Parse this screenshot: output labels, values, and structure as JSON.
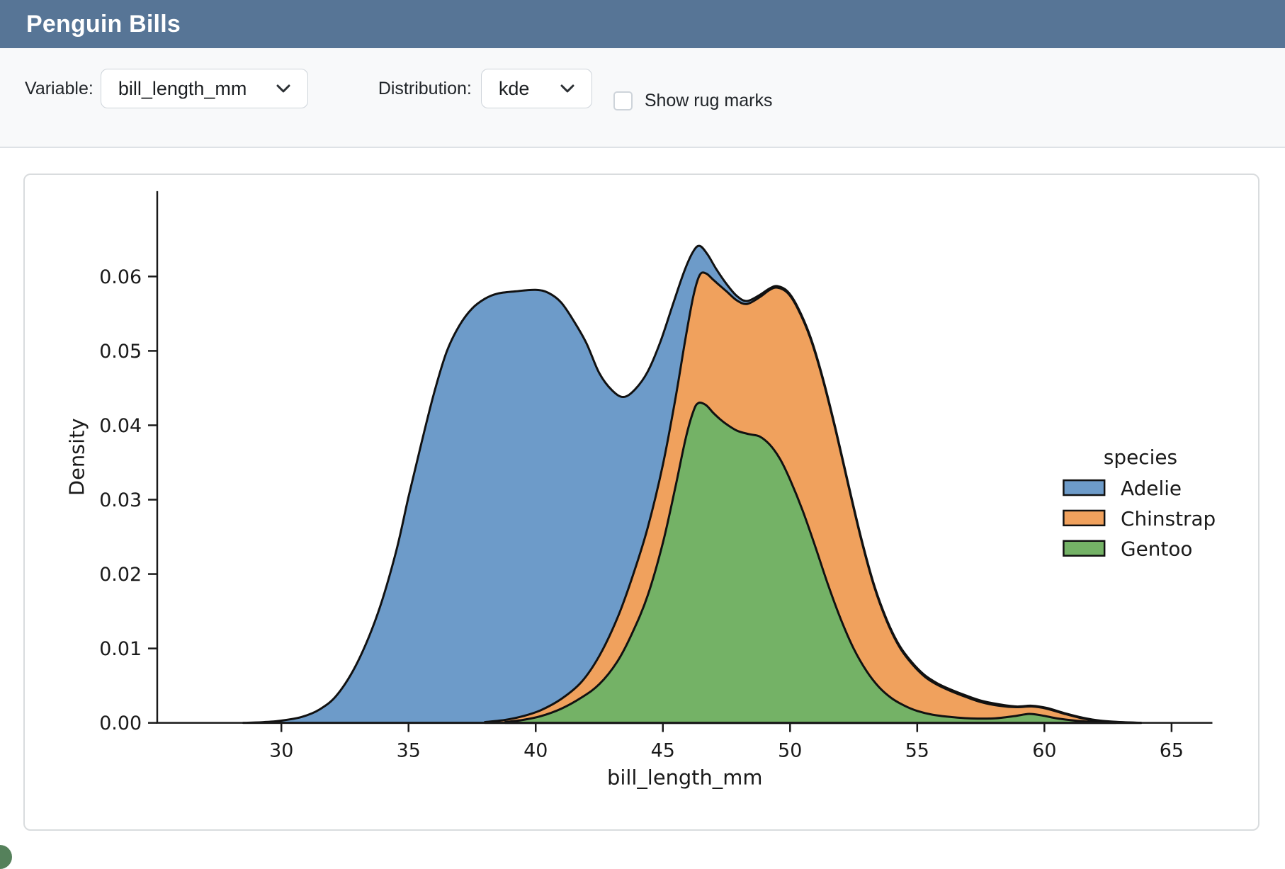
{
  "app": {
    "title": "Penguin Bills"
  },
  "toolbar": {
    "variable_label": "Variable:",
    "variable_value": "bill_length_mm",
    "distribution_label": "Distribution:",
    "distribution_value": "kde",
    "rug_label": "Show rug marks",
    "rug_checked": false
  },
  "theme": {
    "header_bg": "#577596",
    "header_text": "#ffffff",
    "toolbar_bg": "#f8f9fa",
    "toolbar_border": "#dee2e6",
    "control_border": "#ced4da",
    "card_border": "#d9dcde",
    "page_bg": "#ffffff",
    "text": "#212529",
    "plot_text": "#1a1a1a",
    "curve_edge": "#111111",
    "accent_corner": "#55815b"
  },
  "chart_data": {
    "type": "area",
    "subtype": "stacked-kde-density",
    "xlabel": "bill_length_mm",
    "ylabel": "Density",
    "xlim": [
      25.1,
      66.6
    ],
    "ylim": [
      0,
      0.0715
    ],
    "x_ticks": [
      30,
      35,
      40,
      45,
      50,
      55,
      60,
      65
    ],
    "x_tick_labels": [
      "30",
      "35",
      "40",
      "45",
      "50",
      "55",
      "60",
      "65"
    ],
    "y_ticks": [
      0,
      0.01,
      0.02,
      0.03,
      0.04,
      0.05,
      0.06
    ],
    "y_tick_labels": [
      "0.00",
      "0.01",
      "0.02",
      "0.03",
      "0.04",
      "0.05",
      "0.06"
    ],
    "grid": false,
    "legend": {
      "title": "species",
      "position": "right",
      "entries": [
        {
          "label": "Adelie",
          "color": "#6d9bc9"
        },
        {
          "label": "Chinstrap",
          "color": "#f0a15d"
        },
        {
          "label": "Gentoo",
          "color": "#74b266"
        }
      ]
    },
    "note": "Stacked KDE. Each series' points give the TOP cumulative outline (x in mm, density). Draw order: Adelie total envelope first, then Chinstrap cumulative, then Gentoo on top.",
    "series": [
      {
        "name": "Adelie",
        "color": "#6d9bc9",
        "points": [
          [
            28.5,
            0
          ],
          [
            29.3,
            0.0001
          ],
          [
            30.0,
            0.0003
          ],
          [
            30.8,
            0.0008
          ],
          [
            31.5,
            0.0018
          ],
          [
            32.2,
            0.0038
          ],
          [
            33.0,
            0.0082
          ],
          [
            33.8,
            0.0148
          ],
          [
            34.5,
            0.0229
          ],
          [
            35.0,
            0.0304
          ],
          [
            35.5,
            0.0375
          ],
          [
            36.0,
            0.0443
          ],
          [
            36.5,
            0.0499
          ],
          [
            37.0,
            0.0534
          ],
          [
            37.5,
            0.0557
          ],
          [
            38.0,
            0.057
          ],
          [
            38.5,
            0.0577
          ],
          [
            39.2,
            0.058
          ],
          [
            40.0,
            0.0582
          ],
          [
            40.5,
            0.0578
          ],
          [
            41.0,
            0.0565
          ],
          [
            41.5,
            0.054
          ],
          [
            42.0,
            0.051
          ],
          [
            42.5,
            0.047
          ],
          [
            43.0,
            0.0447
          ],
          [
            43.45,
            0.0438
          ],
          [
            43.9,
            0.0448
          ],
          [
            44.4,
            0.0472
          ],
          [
            44.9,
            0.0512
          ],
          [
            45.4,
            0.0563
          ],
          [
            45.85,
            0.0608
          ],
          [
            46.2,
            0.0634
          ],
          [
            46.45,
            0.0641
          ],
          [
            46.75,
            0.063
          ],
          [
            47.1,
            0.061
          ],
          [
            47.5,
            0.059
          ],
          [
            47.9,
            0.0574
          ],
          [
            48.3,
            0.0567
          ],
          [
            48.8,
            0.0575
          ],
          [
            49.2,
            0.0584
          ],
          [
            49.5,
            0.0587
          ],
          [
            49.9,
            0.058
          ],
          [
            50.3,
            0.0559
          ],
          [
            50.8,
            0.0519
          ],
          [
            51.3,
            0.0462
          ],
          [
            51.8,
            0.0394
          ],
          [
            52.3,
            0.032
          ],
          [
            52.8,
            0.0248
          ],
          [
            53.3,
            0.0186
          ],
          [
            53.8,
            0.0139
          ],
          [
            54.3,
            0.0104
          ],
          [
            54.8,
            0.0081
          ],
          [
            55.3,
            0.0064
          ],
          [
            55.8,
            0.0053
          ],
          [
            56.3,
            0.0045
          ],
          [
            56.9,
            0.0037
          ],
          [
            57.5,
            0.003
          ],
          [
            58.2,
            0.0025
          ],
          [
            58.9,
            0.0022
          ],
          [
            59.5,
            0.0023
          ],
          [
            60.1,
            0.002
          ],
          [
            60.8,
            0.0013
          ],
          [
            61.5,
            0.0007
          ],
          [
            62.2,
            0.0003
          ],
          [
            63.0,
            0.0001
          ],
          [
            63.8,
            0
          ]
        ]
      },
      {
        "name": "Chinstrap",
        "color": "#f0a15d",
        "points": [
          [
            38.0,
            0.0001
          ],
          [
            38.8,
            0.0004
          ],
          [
            39.5,
            0.0009
          ],
          [
            40.2,
            0.0017
          ],
          [
            41.0,
            0.0032
          ],
          [
            41.8,
            0.0055
          ],
          [
            42.5,
            0.009
          ],
          [
            43.2,
            0.014
          ],
          [
            43.8,
            0.0196
          ],
          [
            44.4,
            0.0262
          ],
          [
            45.0,
            0.0347
          ],
          [
            45.5,
            0.0437
          ],
          [
            45.9,
            0.0519
          ],
          [
            46.2,
            0.0574
          ],
          [
            46.45,
            0.0602
          ],
          [
            46.7,
            0.0604
          ],
          [
            47.0,
            0.0595
          ],
          [
            47.5,
            0.058
          ],
          [
            47.9,
            0.0568
          ],
          [
            48.3,
            0.0563
          ],
          [
            48.8,
            0.0572
          ],
          [
            49.2,
            0.0582
          ],
          [
            49.5,
            0.0585
          ],
          [
            49.9,
            0.0578
          ],
          [
            50.3,
            0.0557
          ],
          [
            50.8,
            0.0517
          ],
          [
            51.3,
            0.046
          ],
          [
            51.8,
            0.0392
          ],
          [
            52.3,
            0.0318
          ],
          [
            52.8,
            0.0246
          ],
          [
            53.3,
            0.0184
          ],
          [
            53.8,
            0.0137
          ],
          [
            54.3,
            0.0102
          ],
          [
            54.8,
            0.0079
          ],
          [
            55.3,
            0.0062
          ],
          [
            55.8,
            0.0051
          ],
          [
            56.3,
            0.0043
          ],
          [
            56.9,
            0.0035
          ],
          [
            57.5,
            0.0028
          ],
          [
            58.2,
            0.0023
          ],
          [
            58.9,
            0.0021
          ],
          [
            59.5,
            0.0022
          ],
          [
            60.1,
            0.0019
          ],
          [
            60.8,
            0.0012
          ],
          [
            61.5,
            0.0006
          ],
          [
            62.2,
            0.0002
          ],
          [
            63.0,
            0.0001
          ],
          [
            63.8,
            0
          ]
        ]
      },
      {
        "name": "Gentoo",
        "color": "#74b266",
        "points": [
          [
            38.8,
            0.0001
          ],
          [
            39.5,
            0.0004
          ],
          [
            40.2,
            0.0009
          ],
          [
            41.0,
            0.0019
          ],
          [
            41.8,
            0.0034
          ],
          [
            42.5,
            0.0052
          ],
          [
            43.2,
            0.0082
          ],
          [
            43.8,
            0.0121
          ],
          [
            44.4,
            0.0171
          ],
          [
            45.0,
            0.0242
          ],
          [
            45.5,
            0.0318
          ],
          [
            45.9,
            0.0383
          ],
          [
            46.2,
            0.0419
          ],
          [
            46.4,
            0.043
          ],
          [
            46.7,
            0.0427
          ],
          [
            47.0,
            0.0416
          ],
          [
            47.4,
            0.0404
          ],
          [
            47.9,
            0.0393
          ],
          [
            48.4,
            0.0388
          ],
          [
            48.8,
            0.0385
          ],
          [
            49.2,
            0.0374
          ],
          [
            49.6,
            0.0355
          ],
          [
            50.0,
            0.0327
          ],
          [
            50.5,
            0.0285
          ],
          [
            51.0,
            0.0236
          ],
          [
            51.5,
            0.0185
          ],
          [
            52.0,
            0.0139
          ],
          [
            52.5,
            0.01
          ],
          [
            53.0,
            0.007
          ],
          [
            53.5,
            0.0048
          ],
          [
            54.0,
            0.0033
          ],
          [
            54.5,
            0.0023
          ],
          [
            55.0,
            0.0016
          ],
          [
            55.6,
            0.0011
          ],
          [
            56.3,
            0.0008
          ],
          [
            57.1,
            0.0006
          ],
          [
            58.0,
            0.0006
          ],
          [
            58.8,
            0.0009
          ],
          [
            59.4,
            0.0012
          ],
          [
            59.9,
            0.001
          ],
          [
            60.5,
            0.0006
          ],
          [
            61.2,
            0.0003
          ],
          [
            62.0,
            0.0001
          ],
          [
            62.8,
            0
          ]
        ]
      }
    ]
  }
}
